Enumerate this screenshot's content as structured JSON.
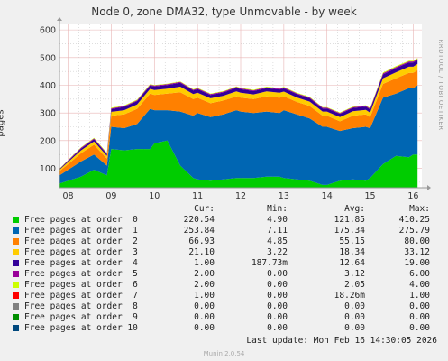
{
  "title": "Node 0, zone DMA32, type Unmovable - by week",
  "ylabel": "pages",
  "side_label": "RRDTOOL / TOBI OETIKER",
  "colors": {
    "plot_bg": "#ffffff",
    "grid_major": "#e8b4b4",
    "grid_minor": "#cccccc",
    "order0": "#00cc00",
    "order1": "#0066b3",
    "order2": "#ff8000",
    "order3": "#ffcc00",
    "order4": "#330099",
    "order5": "#990099",
    "order6": "#ccff00",
    "order7": "#ff0000",
    "order8": "#808080",
    "order9": "#008f00",
    "order10": "#00487d"
  },
  "chart_data": {
    "type": "area",
    "stacked": true,
    "xlabel": "",
    "ylabel": "pages",
    "ylim": [
      30,
      620
    ],
    "yticks": [
      100,
      200,
      300,
      400,
      500,
      600
    ],
    "x_tick_labels": [
      "08",
      "09",
      "10",
      "11",
      "12",
      "13",
      "14",
      "15",
      "16"
    ],
    "x_range_days": [
      7.8,
      16.2
    ],
    "x": [
      7.8,
      8.0,
      8.3,
      8.6,
      8.9,
      9.0,
      9.3,
      9.6,
      9.9,
      10.0,
      10.3,
      10.6,
      10.9,
      11.0,
      11.3,
      11.6,
      11.9,
      12.0,
      12.3,
      12.6,
      12.9,
      13.0,
      13.3,
      13.6,
      13.9,
      14.0,
      14.3,
      14.6,
      14.9,
      15.0,
      15.3,
      15.6,
      15.9,
      16.0,
      16.1
    ],
    "series": [
      {
        "name": "Free pages at order  0",
        "values": [
          45,
          55,
          70,
          95,
          75,
          170,
          165,
          170,
          170,
          190,
          200,
          110,
          65,
          60,
          55,
          60,
          65,
          65,
          65,
          70,
          70,
          65,
          60,
          55,
          40,
          40,
          55,
          60,
          55,
          65,
          115,
          145,
          140,
          150,
          150
        ]
      },
      {
        "name": "Free pages at order  1",
        "values": [
          30,
          40,
          55,
          55,
          35,
          80,
          80,
          90,
          145,
          120,
          110,
          195,
          225,
          240,
          230,
          235,
          245,
          240,
          235,
          235,
          230,
          245,
          235,
          225,
          210,
          210,
          180,
          185,
          195,
          180,
          240,
          225,
          250,
          240,
          250
        ]
      },
      {
        "name": "Free pages at order  2",
        "values": [
          15,
          20,
          30,
          35,
          25,
          40,
          50,
          55,
          55,
          55,
          60,
          70,
          60,
          55,
          50,
          50,
          50,
          50,
          50,
          55,
          55,
          50,
          45,
          45,
          40,
          40,
          35,
          45,
          45,
          40,
          50,
          55,
          55,
          55,
          55
        ]
      },
      {
        "name": "Free pages at order  3",
        "values": [
          5,
          8,
          10,
          12,
          10,
          14,
          15,
          16,
          17,
          18,
          18,
          20,
          18,
          18,
          18,
          17,
          18,
          18,
          17,
          18,
          18,
          17,
          16,
          16,
          15,
          15,
          15,
          16,
          16,
          16,
          20,
          22,
          22,
          22,
          22
        ]
      },
      {
        "name": "Free pages at order  4",
        "values": [
          2,
          4,
          6,
          8,
          6,
          10,
          12,
          12,
          12,
          13,
          13,
          14,
          13,
          13,
          12,
          12,
          13,
          13,
          12,
          12,
          12,
          12,
          12,
          12,
          11,
          11,
          12,
          12,
          12,
          12,
          14,
          15,
          15,
          15,
          14
        ]
      },
      {
        "name": "Free pages at order  5",
        "values": [
          1,
          2,
          3,
          3,
          3,
          3,
          3,
          3,
          3,
          3,
          3,
          3,
          3,
          3,
          3,
          3,
          3,
          3,
          3,
          3,
          3,
          3,
          3,
          3,
          3,
          3,
          3,
          3,
          3,
          3,
          4,
          4,
          4,
          4,
          4
        ]
      },
      {
        "name": "Free pages at order  6",
        "values": [
          1,
          1,
          2,
          2,
          2,
          2,
          2,
          2,
          2,
          2,
          2,
          2,
          2,
          2,
          2,
          2,
          2,
          2,
          2,
          2,
          2,
          2,
          2,
          2,
          2,
          2,
          2,
          2,
          2,
          2,
          3,
          3,
          3,
          3,
          3
        ]
      },
      {
        "name": "Free pages at order  7",
        "values": [
          0,
          0,
          0,
          0,
          0,
          0,
          0,
          0,
          0,
          0,
          0,
          0,
          0,
          0,
          0,
          0,
          0,
          0,
          0,
          0,
          0,
          0,
          0,
          0,
          0,
          0,
          0,
          0,
          0,
          0,
          0,
          0,
          0,
          0,
          0
        ]
      },
      {
        "name": "Free pages at order  8",
        "values": [
          0,
          0,
          0,
          0,
          0,
          0,
          0,
          0,
          0,
          0,
          0,
          0,
          0,
          0,
          0,
          0,
          0,
          0,
          0,
          0,
          0,
          0,
          0,
          0,
          0,
          0,
          0,
          0,
          0,
          0,
          0,
          0,
          0,
          0,
          0
        ]
      },
      {
        "name": "Free pages at order  9",
        "values": [
          0,
          0,
          0,
          0,
          0,
          0,
          0,
          0,
          0,
          0,
          0,
          0,
          0,
          0,
          0,
          0,
          0,
          0,
          0,
          0,
          0,
          0,
          0,
          0,
          0,
          0,
          0,
          0,
          0,
          0,
          0,
          0,
          0,
          0,
          0
        ]
      },
      {
        "name": "Free pages at order 10",
        "values": [
          0,
          0,
          0,
          0,
          0,
          0,
          0,
          0,
          0,
          0,
          0,
          0,
          0,
          0,
          0,
          0,
          0,
          0,
          0,
          0,
          0,
          0,
          0,
          0,
          0,
          0,
          0,
          0,
          0,
          0,
          0,
          0,
          0,
          0,
          0
        ]
      }
    ]
  },
  "legend": {
    "headers": [
      "Cur:",
      "Min:",
      "Avg:",
      "Max:"
    ],
    "rows": [
      {
        "label": "Free pages at order  0",
        "color": "#00cc00",
        "cur": "220.54",
        "min": "4.90",
        "avg": "121.85",
        "max": "410.25"
      },
      {
        "label": "Free pages at order  1",
        "color": "#0066b3",
        "cur": "253.84",
        "min": "7.11",
        "avg": "175.34",
        "max": "275.79"
      },
      {
        "label": "Free pages at order  2",
        "color": "#ff8000",
        "cur": "66.93",
        "min": "4.85",
        "avg": "55.15",
        "max": "80.00"
      },
      {
        "label": "Free pages at order  3",
        "color": "#ffcc00",
        "cur": "21.10",
        "min": "3.22",
        "avg": "18.34",
        "max": "33.12"
      },
      {
        "label": "Free pages at order  4",
        "color": "#330099",
        "cur": "1.00",
        "min": "187.73m",
        "avg": "12.64",
        "max": "19.00"
      },
      {
        "label": "Free pages at order  5",
        "color": "#990099",
        "cur": "2.00",
        "min": "0.00",
        "avg": "3.12",
        "max": "6.00"
      },
      {
        "label": "Free pages at order  6",
        "color": "#ccff00",
        "cur": "2.00",
        "min": "0.00",
        "avg": "2.05",
        "max": "4.00"
      },
      {
        "label": "Free pages at order  7",
        "color": "#ff0000",
        "cur": "1.00",
        "min": "0.00",
        "avg": "18.26m",
        "max": "1.00"
      },
      {
        "label": "Free pages at order  8",
        "color": "#808080",
        "cur": "0.00",
        "min": "0.00",
        "avg": "0.00",
        "max": "0.00"
      },
      {
        "label": "Free pages at order  9",
        "color": "#008f00",
        "cur": "0.00",
        "min": "0.00",
        "avg": "0.00",
        "max": "0.00"
      },
      {
        "label": "Free pages at order 10",
        "color": "#00487d",
        "cur": "0.00",
        "min": "0.00",
        "avg": "0.00",
        "max": "0.00"
      }
    ]
  },
  "last_update": "Last update: Mon Feb 16 14:30:05 2026",
  "version": "Munin 2.0.54"
}
